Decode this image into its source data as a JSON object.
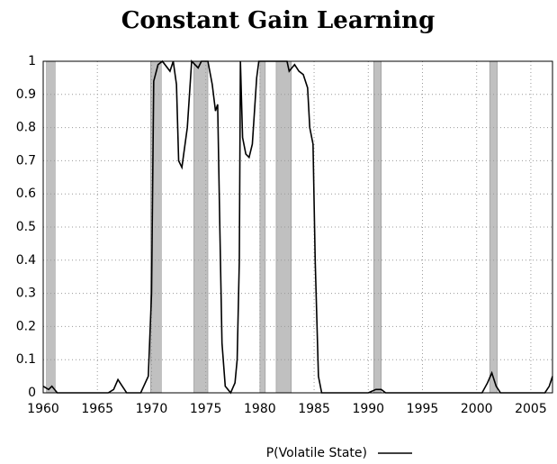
{
  "chart_data": {
    "type": "line",
    "title": "Constant Gain Learning",
    "series": [
      {
        "name": "P(Volatile State)",
        "color": "#000000",
        "x": [
          1960,
          1960.5,
          1960.8,
          1961.3,
          1962,
          1966,
          1966.5,
          1966.9,
          1967.3,
          1967.7,
          1969,
          1969.7,
          1970,
          1970.2,
          1970.6,
          1971,
          1971.7,
          1972,
          1972.3,
          1972.5,
          1972.8,
          1973.3,
          1973.7,
          1974.3,
          1974.6,
          1975.2,
          1975.6,
          1975.9,
          1976.1,
          1976.3,
          1976.5,
          1976.8,
          1977.3,
          1977.7,
          1977.9,
          1978.1,
          1978.2,
          1978.4,
          1978.7,
          1979,
          1979.3,
          1979.7,
          1979.9,
          1981,
          1982.5,
          1982.7,
          1983.2,
          1983.6,
          1984,
          1984.4,
          1984.6,
          1984.9,
          1985.1,
          1985.4,
          1985.7,
          1990,
          1990.7,
          1991.2,
          1991.6,
          2000.5,
          2001,
          2001.4,
          2001.8,
          2002.2,
          2006.3,
          2006.7,
          2007
        ],
        "values": [
          0.02,
          0.01,
          0.02,
          0,
          0,
          0,
          0.01,
          0.04,
          0.02,
          0,
          0,
          0.05,
          0.3,
          0.94,
          0.99,
          1,
          0.97,
          1,
          0.93,
          0.7,
          0.68,
          0.8,
          1,
          0.98,
          1,
          1,
          0.93,
          0.85,
          0.87,
          0.5,
          0.15,
          0.02,
          0,
          0.03,
          0.1,
          0.4,
          1,
          0.77,
          0.72,
          0.71,
          0.75,
          0.95,
          1,
          1,
          1,
          0.97,
          0.99,
          0.97,
          0.96,
          0.92,
          0.8,
          0.75,
          0.4,
          0.05,
          0,
          0,
          0.01,
          0.01,
          0,
          0,
          0.03,
          0.06,
          0.02,
          0,
          0,
          0.02,
          0.05
        ]
      }
    ],
    "shaded": [
      [
        1960.3,
        1961.1
      ],
      [
        1969.9,
        1970.9
      ],
      [
        1973.9,
        1975.2
      ],
      [
        1980.0,
        1980.5
      ],
      [
        1981.5,
        1982.9
      ],
      [
        1990.5,
        1991.2
      ],
      [
        2001.2,
        2001.9
      ]
    ],
    "shade_color": "#c0c0c0",
    "xlim": [
      1960,
      2007
    ],
    "ylim": [
      0,
      1
    ],
    "xticks": [
      1960,
      1965,
      1970,
      1975,
      1980,
      1985,
      1990,
      1995,
      2000,
      2005
    ],
    "yticks": [
      0,
      0.1,
      0.2,
      0.3,
      0.4,
      0.5,
      0.6,
      0.7,
      0.8,
      0.9,
      1
    ],
    "grid": true
  }
}
